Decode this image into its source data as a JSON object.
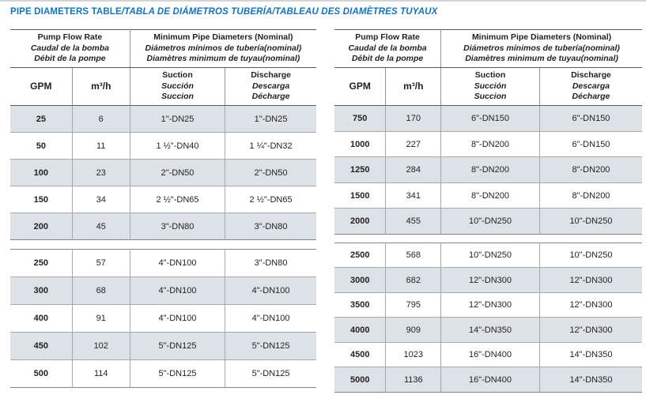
{
  "title": {
    "main": "PIPE DIAMETERS TABLE",
    "translations": "/TABLA DE DIÁMETROS TUBERÍA/TABLEAU DES DIAMÈTRES TUYAUX"
  },
  "column_headers": {
    "flow_group": {
      "en": "Pump Flow Rate",
      "es": "Caudal de la bomba",
      "fr": "Débit de la pompe"
    },
    "diameter_group": {
      "en": "Minimum Pipe Diameters (Nominal)",
      "es": "Diámetros mínimos de tubería(nominal)",
      "fr": "Diamètres minimum de tuyau(nominal)"
    },
    "gpm": "GPM",
    "m3h": "m³/h",
    "suction": {
      "en": "Suction",
      "es": "Succión",
      "fr": "Succion"
    },
    "discharge": {
      "en": "Discharge",
      "es": "Descarga",
      "fr": "Décharge"
    }
  },
  "left_table": {
    "section1": [
      [
        "25",
        "6",
        "1\"-DN25",
        "1\"-DN25"
      ],
      [
        "50",
        "11",
        "1 ½\"-DN40",
        "1 ¼\"-DN32"
      ],
      [
        "100",
        "23",
        "2\"-DN50",
        "2\"-DN50"
      ],
      [
        "150",
        "34",
        "2 ½\"-DN65",
        "2 ½\"-DN65"
      ],
      [
        "200",
        "45",
        "3\"-DN80",
        "3\"-DN80"
      ]
    ],
    "section2": [
      [
        "250",
        "57",
        "4\"-DN100",
        "3\"-DN80"
      ],
      [
        "300",
        "68",
        "4\"-DN100",
        "4\"-DN100"
      ],
      [
        "400",
        "91",
        "4\"-DN100",
        "4\"-DN100"
      ],
      [
        "450",
        "102",
        "5\"-DN125",
        "5\"-DN125"
      ],
      [
        "500",
        "114",
        "5\"-DN125",
        "5\"-DN125"
      ]
    ]
  },
  "right_table": {
    "section1": [
      [
        "750",
        "170",
        "6\"-DN150",
        "6\"-DN150"
      ],
      [
        "1000",
        "227",
        "8\"-DN200",
        "6\"-DN150"
      ],
      [
        "1250",
        "284",
        "8\"-DN200",
        "8\"-DN200"
      ],
      [
        "1500",
        "341",
        "8\"-DN200",
        "8\"-DN200"
      ],
      [
        "2000",
        "455",
        "10\"-DN250",
        "10\"-DN250"
      ]
    ],
    "section2": [
      [
        "2500",
        "568",
        "10\"-DN250",
        "10\"-DN250"
      ],
      [
        "3000",
        "682",
        "12\"-DN300",
        "12\"-DN300"
      ],
      [
        "3500",
        "795",
        "12\"-DN300",
        "12\"-DN300"
      ],
      [
        "4000",
        "909",
        "14\"-DN350",
        "12\"-DN300"
      ],
      [
        "4500",
        "1023",
        "16\"-DN400",
        "14\"-DN350"
      ],
      [
        "5000",
        "1136",
        "16\"-DN400",
        "14\"-DN350"
      ]
    ]
  },
  "colors": {
    "title_blue": "#1373b9",
    "row_shade": "#dde2e6",
    "text": "#231f20",
    "heavy_line": "#58595b",
    "light_line": "#a6a8ab"
  }
}
